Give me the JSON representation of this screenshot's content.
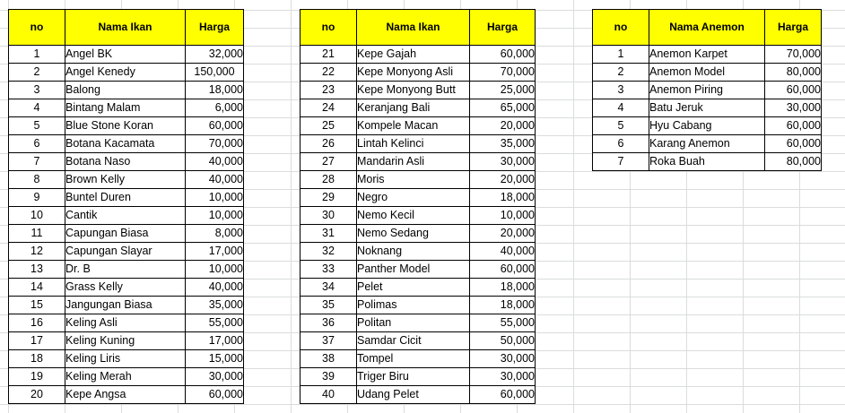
{
  "colors": {
    "header_fill": "#ffff00",
    "gridline": "#dadcdd",
    "border": "#000000"
  },
  "tables": [
    {
      "headers": {
        "no": "no",
        "name": "Nama Ikan",
        "price": "Harga"
      },
      "rows": [
        {
          "no": "1",
          "name": "Angel BK",
          "price": "32,000"
        },
        {
          "no": "2",
          "name": "Angel Kenedy",
          "price": "150,000"
        },
        {
          "no": "3",
          "name": "Balong",
          "price": "18,000"
        },
        {
          "no": "4",
          "name": "Bintang Malam",
          "price": "6,000"
        },
        {
          "no": "5",
          "name": "Blue Stone Koran",
          "price": "60,000"
        },
        {
          "no": "6",
          "name": "Botana Kacamata",
          "price": "70,000"
        },
        {
          "no": "7",
          "name": "Botana Naso",
          "price": "40,000"
        },
        {
          "no": "8",
          "name": "Brown Kelly",
          "price": "40,000"
        },
        {
          "no": "9",
          "name": "Buntel Duren",
          "price": "10,000"
        },
        {
          "no": "10",
          "name": "Cantik",
          "price": "10,000"
        },
        {
          "no": "11",
          "name": "Capungan Biasa",
          "price": "8,000"
        },
        {
          "no": "12",
          "name": "Capungan Slayar",
          "price": "17,000"
        },
        {
          "no": "13",
          "name": "Dr. B",
          "price": "10,000"
        },
        {
          "no": "14",
          "name": "Grass Kelly",
          "price": "40,000"
        },
        {
          "no": "15",
          "name": "Jangungan Biasa",
          "price": "35,000"
        },
        {
          "no": "16",
          "name": "Keling Asli",
          "price": "55,000"
        },
        {
          "no": "17",
          "name": "Keling Kuning",
          "price": "17,000"
        },
        {
          "no": "18",
          "name": "Keling Liris",
          "price": "15,000"
        },
        {
          "no": "19",
          "name": "Keling Merah",
          "price": "30,000"
        },
        {
          "no": "20",
          "name": "Kepe Angsa",
          "price": "60,000"
        }
      ]
    },
    {
      "headers": {
        "no": "no",
        "name": "Nama Ikan",
        "price": "Harga"
      },
      "rows": [
        {
          "no": "21",
          "name": "Kepe Gajah",
          "price": "60,000"
        },
        {
          "no": "22",
          "name": "Kepe Monyong Asli",
          "price": "70,000"
        },
        {
          "no": "23",
          "name": "Kepe Monyong Butt",
          "price": "25,000"
        },
        {
          "no": "24",
          "name": "Keranjang Bali",
          "price": "65,000"
        },
        {
          "no": "25",
          "name": "Kompele Macan",
          "price": "20,000"
        },
        {
          "no": "26",
          "name": "Lintah Kelinci",
          "price": "35,000"
        },
        {
          "no": "27",
          "name": "Mandarin Asli",
          "price": "30,000"
        },
        {
          "no": "28",
          "name": "Moris",
          "price": "20,000"
        },
        {
          "no": "29",
          "name": "Negro",
          "price": "18,000"
        },
        {
          "no": "30",
          "name": "Nemo Kecil",
          "price": "10,000"
        },
        {
          "no": "31",
          "name": "Nemo Sedang",
          "price": "20,000"
        },
        {
          "no": "32",
          "name": "Noknang",
          "price": "40,000"
        },
        {
          "no": "33",
          "name": "Panther Model",
          "price": "60,000"
        },
        {
          "no": "34",
          "name": "Pelet",
          "price": "18,000"
        },
        {
          "no": "35",
          "name": "Polimas",
          "price": "18,000"
        },
        {
          "no": "36",
          "name": "Politan",
          "price": "55,000"
        },
        {
          "no": "37",
          "name": "Samdar Cicit",
          "price": "50,000"
        },
        {
          "no": "38",
          "name": "Tompel",
          "price": "30,000"
        },
        {
          "no": "39",
          "name": "Triger Biru",
          "price": "30,000"
        },
        {
          "no": "40",
          "name": "Udang Pelet",
          "price": "60,000"
        }
      ]
    },
    {
      "headers": {
        "no": "no",
        "name": "Nama Anemon",
        "price": "Harga"
      },
      "rows": [
        {
          "no": "1",
          "name": "Anemon Karpet",
          "price": "70,000"
        },
        {
          "no": "2",
          "name": "Anemon Model",
          "price": "80,000"
        },
        {
          "no": "3",
          "name": "Anemon Piring",
          "price": "60,000"
        },
        {
          "no": "4",
          "name": "Batu Jeruk",
          "price": "30,000"
        },
        {
          "no": "5",
          "name": "Hyu Cabang",
          "price": "60,000"
        },
        {
          "no": "6",
          "name": "Karang Anemon",
          "price": "60,000"
        },
        {
          "no": "7",
          "name": "Roka Buah",
          "price": "80,000"
        }
      ]
    }
  ]
}
